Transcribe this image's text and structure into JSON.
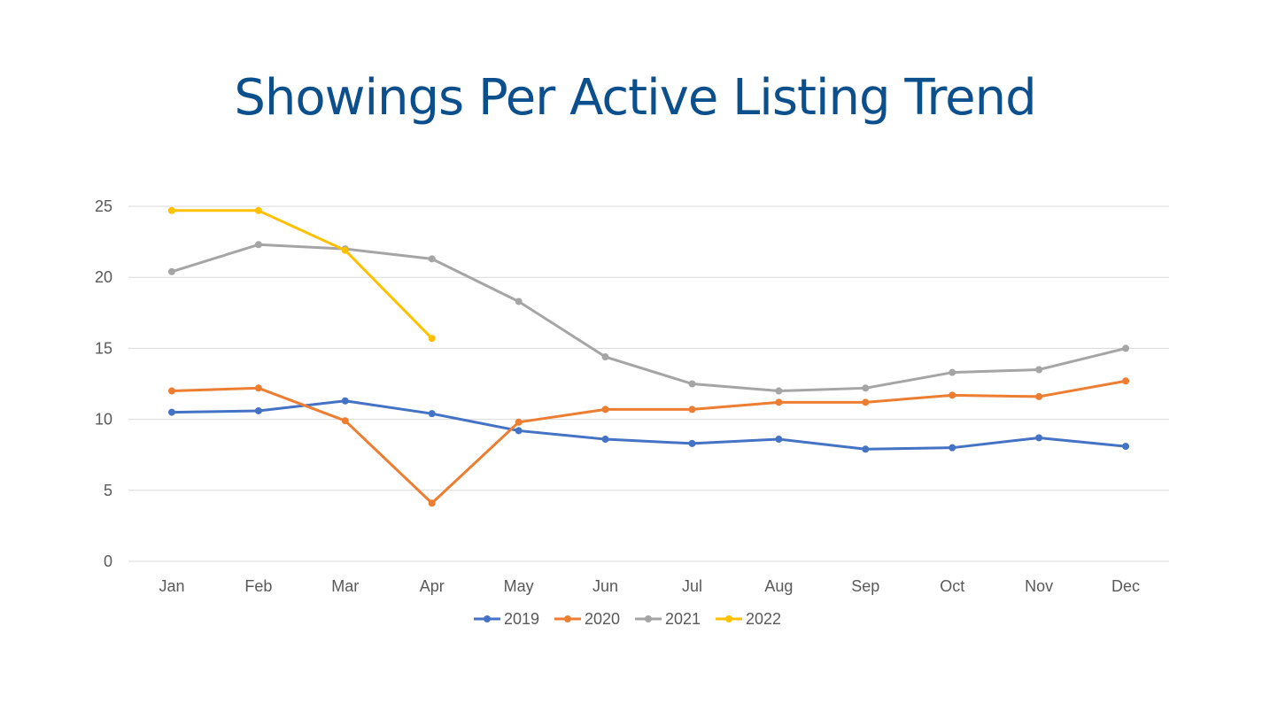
{
  "chart_data": {
    "type": "line",
    "title": "Showings Per Active Listing Trend",
    "xlabel": "",
    "ylabel": "",
    "ylim": [
      0,
      25
    ],
    "yticks": [
      0,
      5,
      10,
      15,
      20,
      25
    ],
    "grid": true,
    "legend_position": "bottom",
    "categories": [
      "Jan",
      "Feb",
      "Mar",
      "Apr",
      "May",
      "Jun",
      "Jul",
      "Aug",
      "Sep",
      "Oct",
      "Nov",
      "Dec"
    ],
    "series": [
      {
        "name": "2019",
        "color": "#4472c4",
        "values": [
          10.5,
          10.6,
          11.3,
          10.4,
          9.2,
          8.6,
          8.3,
          8.6,
          7.9,
          8.0,
          8.7,
          8.1
        ]
      },
      {
        "name": "2020",
        "color": "#ed7d31",
        "values": [
          12.0,
          12.2,
          9.9,
          4.1,
          9.8,
          10.7,
          10.7,
          11.2,
          11.2,
          11.7,
          11.6,
          12.7
        ]
      },
      {
        "name": "2021",
        "color": "#a5a5a5",
        "values": [
          20.4,
          22.3,
          22.0,
          21.3,
          18.3,
          14.4,
          12.5,
          12.0,
          12.2,
          13.3,
          13.5,
          15.0
        ]
      },
      {
        "name": "2022",
        "color": "#ffc000",
        "values": [
          24.7,
          24.7,
          21.9,
          15.7,
          null,
          null,
          null,
          null,
          null,
          null,
          null,
          null
        ]
      }
    ]
  }
}
